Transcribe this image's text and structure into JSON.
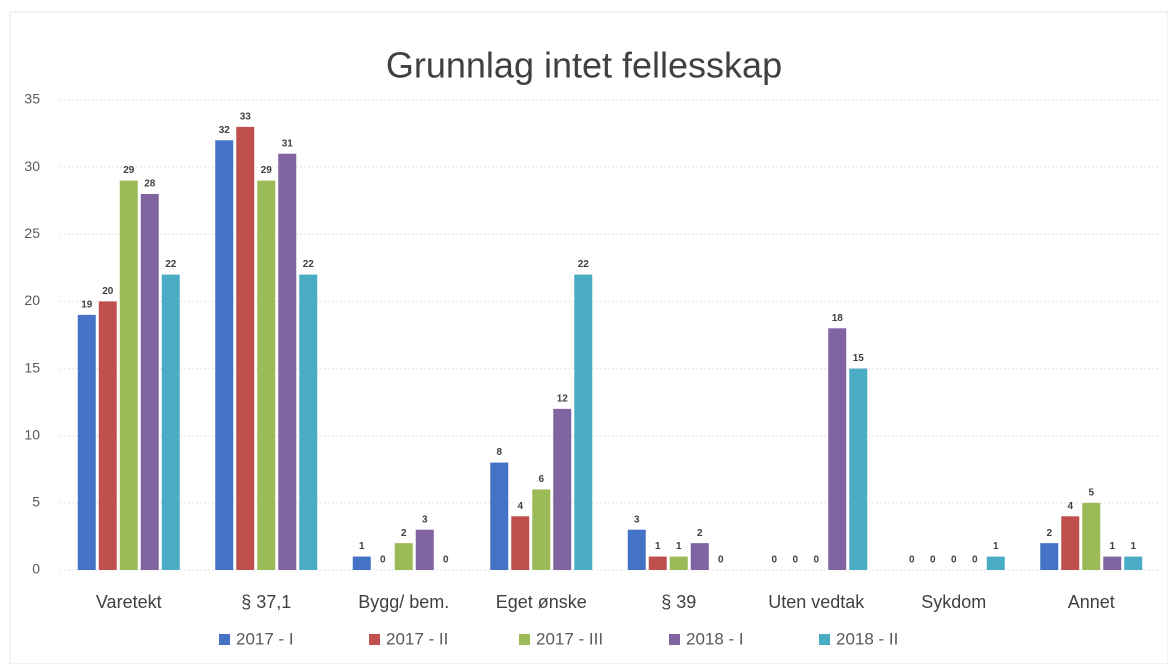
{
  "chart_data": {
    "type": "bar",
    "title": "Grunnlag intet fellesskap",
    "categories": [
      "Varetekt",
      "§ 37,1",
      "Bygg/ bem.",
      "Eget ønske",
      "§ 39",
      "Uten vedtak",
      "Sykdom",
      "Annet"
    ],
    "series": [
      {
        "name": "2017 - I",
        "color": "#4472c4",
        "values": [
          19,
          32,
          1,
          8,
          3,
          0,
          0,
          2
        ]
      },
      {
        "name": "2017 - II",
        "color": "#c0504d",
        "values": [
          20,
          33,
          0,
          4,
          1,
          0,
          0,
          4
        ]
      },
      {
        "name": "2017 - III",
        "color": "#9bbb59",
        "values": [
          29,
          29,
          2,
          6,
          1,
          0,
          0,
          5
        ]
      },
      {
        "name": "2018 - I",
        "color": "#8064a2",
        "values": [
          28,
          31,
          3,
          12,
          2,
          18,
          0,
          1
        ]
      },
      {
        "name": "2018 - II",
        "color": "#4bacc6",
        "values": [
          22,
          22,
          0,
          22,
          0,
          15,
          1,
          1
        ]
      }
    ],
    "ylim": [
      0,
      35
    ],
    "yticks": [
      0,
      5,
      10,
      15,
      20,
      25,
      30,
      35
    ],
    "grid": true,
    "legend": "bottom"
  }
}
